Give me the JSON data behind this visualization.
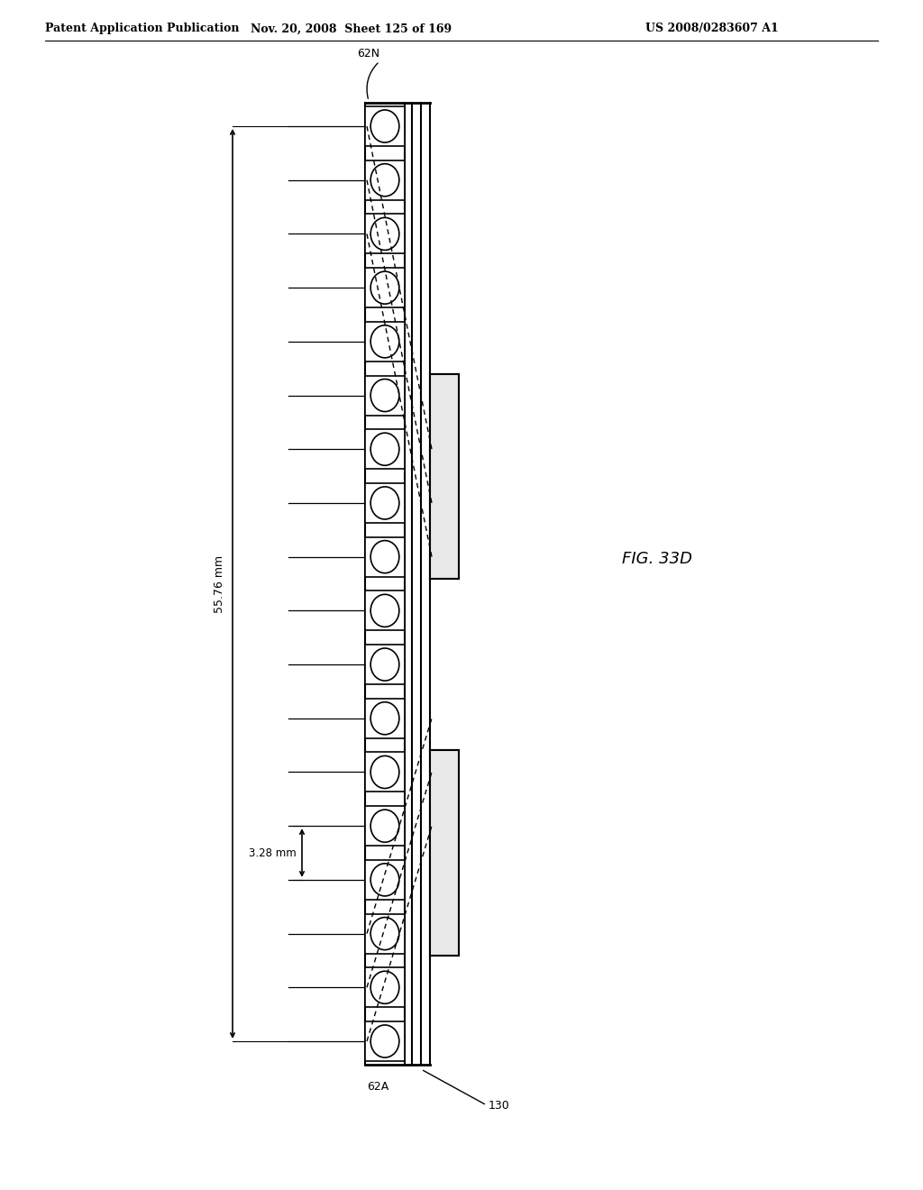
{
  "title_left": "Patent Application Publication",
  "title_middle": "Nov. 20, 2008  Sheet 125 of 169",
  "title_right": "US 2008/0283607 A1",
  "fig_label": "FIG. 33D",
  "label_62N": "62N",
  "label_62A": "62A",
  "label_130": "130",
  "dim_large": "55.76 mm",
  "dim_small": "3.28 mm",
  "n_leds": 18,
  "background_color": "#ffffff",
  "line_color": "#000000",
  "dashed_color": "#000000"
}
